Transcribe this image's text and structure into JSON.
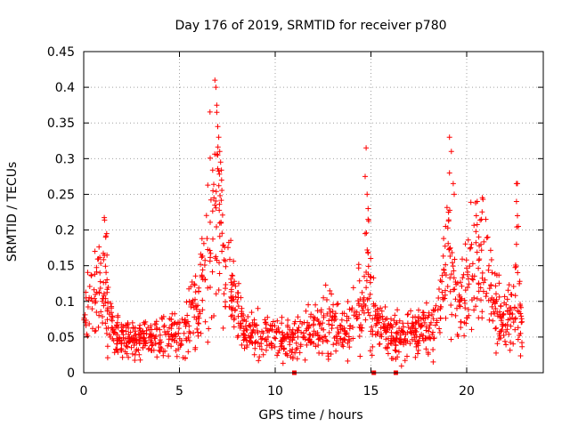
{
  "chart_data": {
    "type": "scatter",
    "title": "Day 176 of 2019, SRMTID for receiver p780",
    "xlabel": "GPS time / hours",
    "ylabel": "SRMTID / TECUs",
    "xlim": [
      0,
      24
    ],
    "ylim": [
      0,
      0.45
    ],
    "x_ticks": [
      0,
      5,
      10,
      15,
      20
    ],
    "x_tick_labels": [
      "0",
      "5",
      "10",
      "15",
      "20"
    ],
    "y_ticks": [
      0,
      0.05,
      0.1,
      0.15,
      0.2,
      0.25,
      0.3,
      0.35,
      0.4,
      0.45
    ],
    "y_tick_labels": [
      "0",
      "0.05",
      "0.1",
      "0.15",
      "0.2",
      "0.25",
      "0.3",
      "0.35",
      "0.4",
      "0.45"
    ],
    "grid": true,
    "marker": "+",
    "color": "#ff0000",
    "baseline_gap_markers": [
      11.0,
      15.15,
      16.3
    ],
    "envelope": [
      [
        0.0,
        0.08
      ],
      [
        0.3,
        0.1
      ],
      [
        0.6,
        0.11
      ],
      [
        0.9,
        0.11
      ],
      [
        1.1,
        0.16
      ],
      [
        1.3,
        0.08
      ],
      [
        1.6,
        0.06
      ],
      [
        2.0,
        0.05
      ],
      [
        2.5,
        0.045
      ],
      [
        3.0,
        0.045
      ],
      [
        3.5,
        0.045
      ],
      [
        4.0,
        0.05
      ],
      [
        4.5,
        0.05
      ],
      [
        5.0,
        0.06
      ],
      [
        5.5,
        0.07
      ],
      [
        6.0,
        0.1
      ],
      [
        6.3,
        0.15
      ],
      [
        6.6,
        0.2
      ],
      [
        6.9,
        0.26
      ],
      [
        7.1,
        0.2
      ],
      [
        7.4,
        0.13
      ],
      [
        7.8,
        0.11
      ],
      [
        8.2,
        0.07
      ],
      [
        8.6,
        0.055
      ],
      [
        9.0,
        0.055
      ],
      [
        9.5,
        0.05
      ],
      [
        10.0,
        0.05
      ],
      [
        10.5,
        0.045
      ],
      [
        11.0,
        0.045
      ],
      [
        11.5,
        0.055
      ],
      [
        12.0,
        0.06
      ],
      [
        12.5,
        0.065
      ],
      [
        12.8,
        0.08
      ],
      [
        13.2,
        0.06
      ],
      [
        13.8,
        0.06
      ],
      [
        14.2,
        0.08
      ],
      [
        14.6,
        0.1
      ],
      [
        14.8,
        0.16
      ],
      [
        15.0,
        0.1
      ],
      [
        15.3,
        0.06
      ],
      [
        15.8,
        0.06
      ],
      [
        16.3,
        0.05
      ],
      [
        16.8,
        0.05
      ],
      [
        17.3,
        0.055
      ],
      [
        17.8,
        0.06
      ],
      [
        18.3,
        0.07
      ],
      [
        18.7,
        0.1
      ],
      [
        19.0,
        0.16
      ],
      [
        19.3,
        0.12
      ],
      [
        19.6,
        0.1
      ],
      [
        20.0,
        0.12
      ],
      [
        20.4,
        0.15
      ],
      [
        20.8,
        0.17
      ],
      [
        21.2,
        0.12
      ],
      [
        21.6,
        0.09
      ],
      [
        22.0,
        0.07
      ],
      [
        22.4,
        0.08
      ],
      [
        22.6,
        0.12
      ],
      [
        22.9,
        0.08
      ]
    ],
    "outliers": [
      [
        1.15,
        0.19
      ],
      [
        1.2,
        0.195
      ],
      [
        6.85,
        0.41
      ],
      [
        6.9,
        0.4
      ],
      [
        6.95,
        0.375
      ],
      [
        6.95,
        0.365
      ],
      [
        7.0,
        0.345
      ],
      [
        7.05,
        0.33
      ],
      [
        7.1,
        0.31
      ],
      [
        7.0,
        0.305
      ],
      [
        7.15,
        0.295
      ],
      [
        7.2,
        0.27
      ],
      [
        6.75,
        0.255
      ],
      [
        6.8,
        0.245
      ],
      [
        14.75,
        0.315
      ],
      [
        14.7,
        0.275
      ],
      [
        14.8,
        0.25
      ],
      [
        14.85,
        0.23
      ],
      [
        14.7,
        0.195
      ],
      [
        19.1,
        0.33
      ],
      [
        19.2,
        0.31
      ],
      [
        19.1,
        0.28
      ],
      [
        19.3,
        0.265
      ],
      [
        19.35,
        0.25
      ],
      [
        19.05,
        0.225
      ],
      [
        18.9,
        0.205
      ],
      [
        20.55,
        0.24
      ],
      [
        20.5,
        0.22
      ],
      [
        21.0,
        0.215
      ],
      [
        21.1,
        0.19
      ],
      [
        22.6,
        0.265
      ],
      [
        22.65,
        0.265
      ],
      [
        22.6,
        0.24
      ],
      [
        22.65,
        0.22
      ],
      [
        22.7,
        0.205
      ],
      [
        22.6,
        0.18
      ]
    ]
  }
}
